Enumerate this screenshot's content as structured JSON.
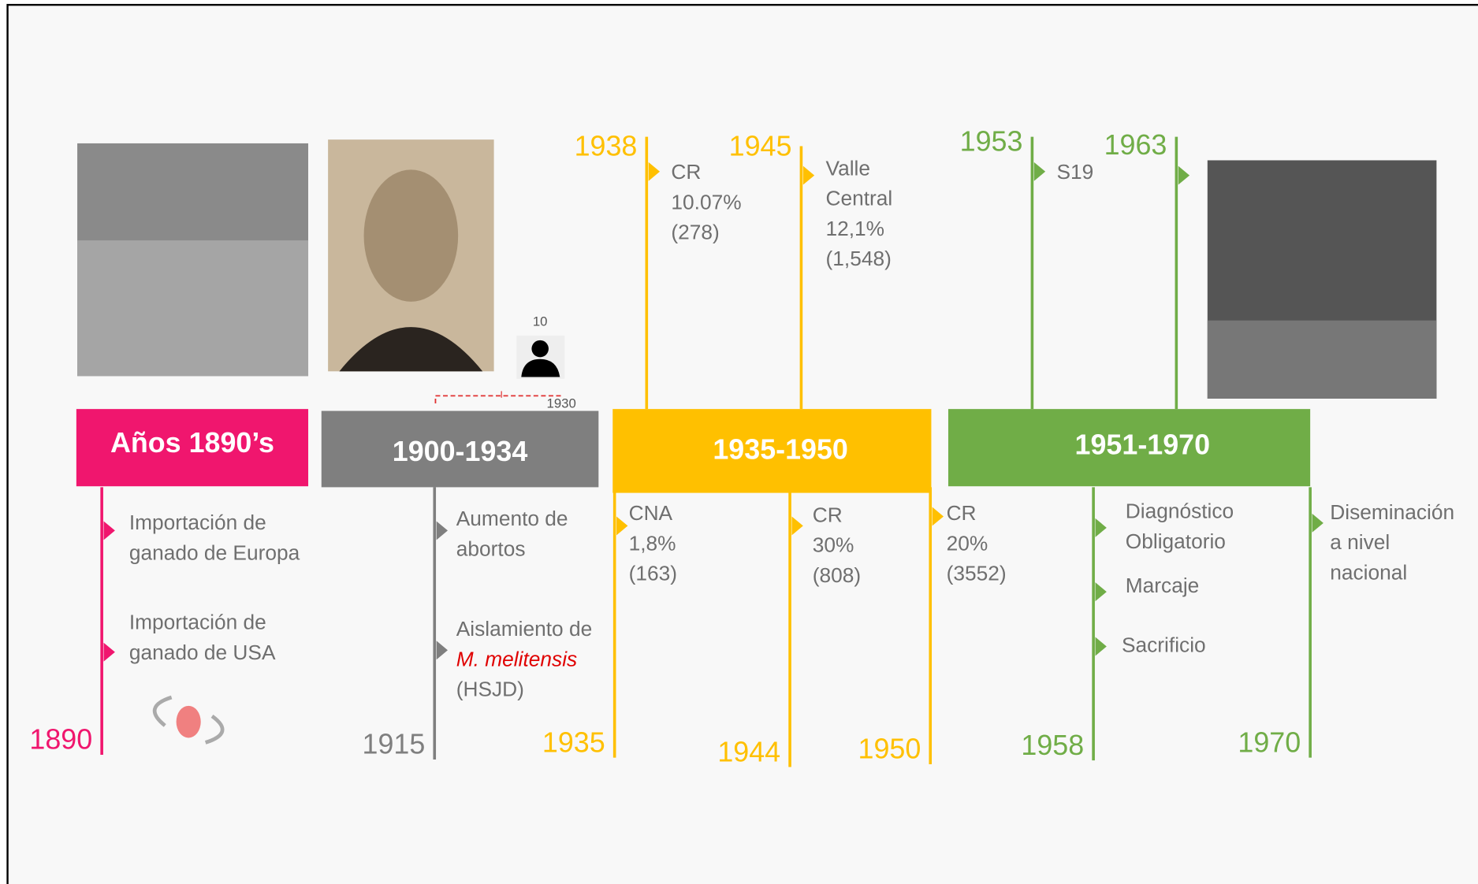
{
  "periods": [
    {
      "label": "Años 1890’s"
    },
    {
      "label": "1900-1934"
    },
    {
      "label": "1935-1950"
    },
    {
      "label": "1951-1970"
    }
  ],
  "top_events": [
    {
      "year": "1938",
      "lines": [
        "CR",
        "10.07%",
        "(278)"
      ]
    },
    {
      "year": "1945",
      "lines": [
        "Valle",
        "Central",
        "12,1%",
        "(1,548)"
      ]
    },
    {
      "year": "1953",
      "lines": [
        "S19"
      ]
    },
    {
      "year": "1963"
    }
  ],
  "bottom_events": [
    {
      "year": "1890",
      "items": [
        [
          "Importación de",
          "ganado de Europa"
        ],
        [
          "Importación de",
          "ganado de USA"
        ]
      ]
    },
    {
      "year": "1915",
      "items": [
        [
          "Aumento de",
          "abortos"
        ],
        [
          "Aislamiento de",
          "M. melitensis",
          "(HSJD)"
        ]
      ]
    },
    {
      "year": "1935",
      "items": [
        [
          "CNA",
          "1,8%",
          "(163)"
        ]
      ]
    },
    {
      "year": "1944",
      "items": [
        [
          "CR",
          "30%",
          "(808)"
        ]
      ]
    },
    {
      "year": "1950",
      "items": [
        [
          "CR",
          "20%",
          "(3552)"
        ]
      ]
    },
    {
      "year": "1958",
      "items": [
        [
          "Diagnóstico",
          "Obligatorio"
        ],
        [
          "Marcaje"
        ],
        [
          "Sacrificio"
        ]
      ]
    },
    {
      "year": "1970",
      "items": [
        [
          "Diseminación",
          "a nivel",
          "nacional"
        ]
      ]
    }
  ],
  "marker": {
    "count": "10",
    "year": "1930"
  }
}
